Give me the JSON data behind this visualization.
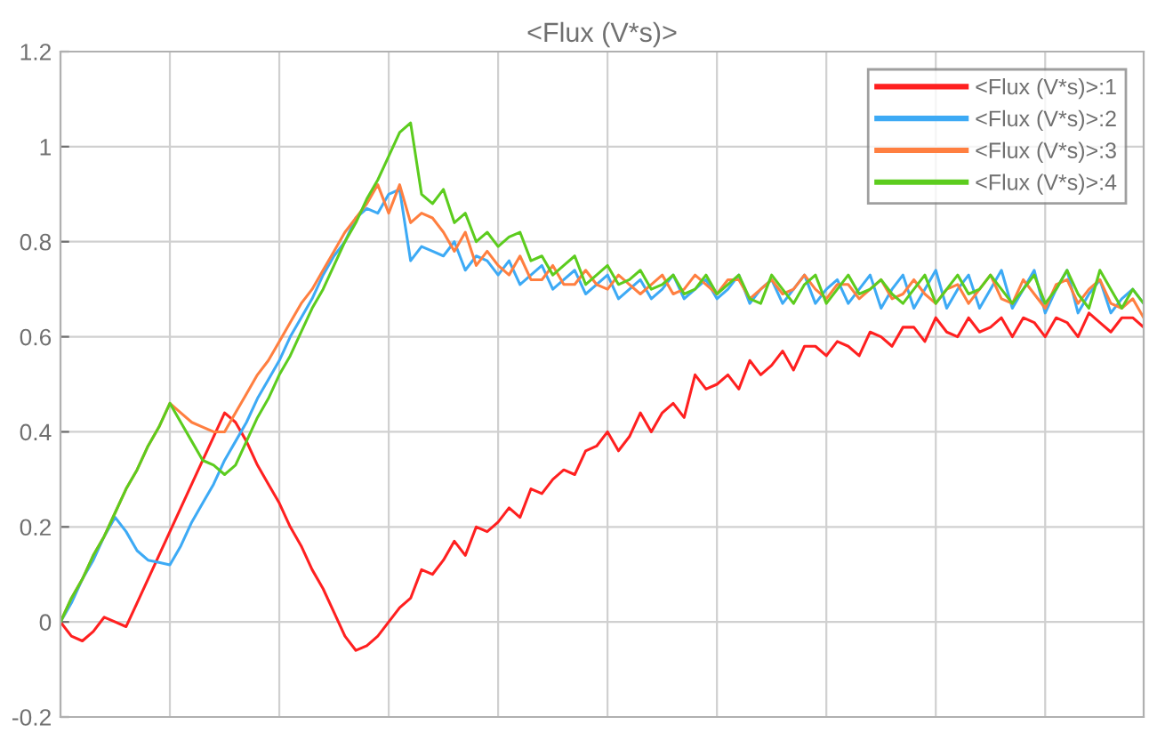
{
  "chart_data": {
    "type": "line",
    "title": "<Flux (V*s)>",
    "categories": [
      null,
      null,
      null,
      null,
      null,
      null,
      null,
      null,
      null,
      null,
      null,
      null,
      null,
      null,
      null,
      null,
      null,
      null,
      null,
      null,
      null,
      null,
      null,
      null,
      null,
      null,
      null,
      null,
      null,
      null,
      null,
      null,
      null,
      null,
      null,
      null,
      null,
      null,
      null,
      null,
      null,
      null,
      null,
      null,
      null,
      null,
      null,
      null,
      null,
      null,
      null,
      null,
      null,
      null,
      null,
      null,
      null,
      null,
      null,
      null,
      null,
      null,
      null,
      null,
      null,
      null,
      null,
      null,
      null,
      null,
      null,
      null,
      null,
      null,
      null,
      null,
      null,
      null,
      null,
      null,
      null,
      null,
      null,
      null,
      null,
      null,
      null,
      null,
      null,
      null,
      null,
      null,
      null,
      null,
      null,
      null,
      null,
      null,
      null,
      null
    ],
    "ylim": [
      -0.2,
      1.2
    ],
    "yticks": [
      -0.2,
      0,
      0.2,
      0.4,
      0.6,
      0.8,
      1,
      1.2
    ],
    "grid": true,
    "legend": "top right",
    "tick_labels": "y",
    "series": [
      {
        "name": "<Flux (V*s)>:1",
        "color": "#ff2020",
        "values": [
          0,
          -0.03,
          -0.04,
          -0.02,
          0.01,
          0.0,
          -0.01,
          0.04,
          0.09,
          0.14,
          0.19,
          0.24,
          0.29,
          0.34,
          0.39,
          0.44,
          0.42,
          0.38,
          0.33,
          0.29,
          0.25,
          0.2,
          0.16,
          0.11,
          0.07,
          0.02,
          -0.03,
          -0.06,
          -0.05,
          -0.03,
          0.0,
          0.03,
          0.05,
          0.11,
          0.1,
          0.13,
          0.17,
          0.14,
          0.2,
          0.19,
          0.21,
          0.24,
          0.22,
          0.28,
          0.27,
          0.3,
          0.32,
          0.31,
          0.36,
          0.37,
          0.4,
          0.36,
          0.39,
          0.44,
          0.4,
          0.44,
          0.46,
          0.43,
          0.52,
          0.49,
          0.5,
          0.52,
          0.49,
          0.55,
          0.52,
          0.54,
          0.57,
          0.53,
          0.58,
          0.58,
          0.56,
          0.59,
          0.58,
          0.56,
          0.61,
          0.6,
          0.58,
          0.62,
          0.62,
          0.59,
          0.64,
          0.61,
          0.6,
          0.64,
          0.61,
          0.62,
          0.64,
          0.6,
          0.64,
          0.63,
          0.6,
          0.64,
          0.63,
          0.6,
          0.65,
          0.63,
          0.61,
          0.64,
          0.64,
          0.62
        ]
      },
      {
        "name": "<Flux (V*s)>:2",
        "color": "#3daaf5",
        "values": [
          0,
          0.04,
          0.09,
          0.13,
          0.18,
          0.22,
          0.19,
          0.15,
          0.13,
          0.125,
          0.12,
          0.16,
          0.21,
          0.25,
          0.29,
          0.34,
          0.38,
          0.42,
          0.47,
          0.51,
          0.55,
          0.6,
          0.64,
          0.68,
          0.73,
          0.77,
          0.8,
          0.85,
          0.87,
          0.86,
          0.9,
          0.91,
          0.76,
          0.79,
          0.78,
          0.77,
          0.8,
          0.74,
          0.77,
          0.76,
          0.73,
          0.76,
          0.71,
          0.73,
          0.75,
          0.7,
          0.72,
          0.74,
          0.69,
          0.71,
          0.73,
          0.68,
          0.7,
          0.72,
          0.68,
          0.7,
          0.73,
          0.68,
          0.7,
          0.72,
          0.68,
          0.7,
          0.73,
          0.67,
          0.7,
          0.72,
          0.67,
          0.7,
          0.73,
          0.67,
          0.7,
          0.72,
          0.67,
          0.7,
          0.73,
          0.66,
          0.7,
          0.73,
          0.66,
          0.7,
          0.74,
          0.66,
          0.7,
          0.73,
          0.66,
          0.7,
          0.74,
          0.66,
          0.7,
          0.74,
          0.65,
          0.7,
          0.74,
          0.65,
          0.69,
          0.72,
          0.65,
          0.68,
          0.7,
          0.67
        ]
      },
      {
        "name": "<Flux (V*s)>:3",
        "color": "#ff7f40",
        "values": [
          0,
          0.05,
          0.09,
          0.14,
          0.18,
          0.23,
          0.28,
          0.32,
          0.37,
          0.41,
          0.46,
          0.44,
          0.42,
          0.41,
          0.4,
          0.4,
          0.44,
          0.48,
          0.52,
          0.55,
          0.59,
          0.63,
          0.67,
          0.7,
          0.74,
          0.78,
          0.82,
          0.85,
          0.88,
          0.92,
          0.86,
          0.92,
          0.84,
          0.86,
          0.85,
          0.82,
          0.78,
          0.82,
          0.75,
          0.78,
          0.75,
          0.73,
          0.77,
          0.72,
          0.72,
          0.75,
          0.71,
          0.71,
          0.74,
          0.71,
          0.7,
          0.73,
          0.71,
          0.69,
          0.71,
          0.73,
          0.69,
          0.7,
          0.73,
          0.71,
          0.69,
          0.72,
          0.72,
          0.68,
          0.7,
          0.72,
          0.69,
          0.7,
          0.73,
          0.7,
          0.68,
          0.71,
          0.71,
          0.68,
          0.7,
          0.72,
          0.68,
          0.69,
          0.72,
          0.69,
          0.67,
          0.7,
          0.71,
          0.67,
          0.7,
          0.73,
          0.68,
          0.67,
          0.72,
          0.69,
          0.66,
          0.71,
          0.72,
          0.67,
          0.7,
          0.72,
          0.67,
          0.66,
          0.68,
          0.64
        ]
      },
      {
        "name": "<Flux (V*s)>:4",
        "color": "#5ccc1e",
        "values": [
          0,
          0.05,
          0.09,
          0.14,
          0.18,
          0.23,
          0.28,
          0.32,
          0.37,
          0.41,
          0.46,
          0.42,
          0.38,
          0.34,
          0.33,
          0.31,
          0.33,
          0.38,
          0.43,
          0.47,
          0.52,
          0.56,
          0.61,
          0.66,
          0.7,
          0.75,
          0.8,
          0.84,
          0.89,
          0.93,
          0.98,
          1.03,
          1.05,
          0.9,
          0.88,
          0.91,
          0.84,
          0.86,
          0.8,
          0.82,
          0.79,
          0.81,
          0.82,
          0.76,
          0.77,
          0.73,
          0.75,
          0.77,
          0.71,
          0.73,
          0.75,
          0.71,
          0.72,
          0.74,
          0.7,
          0.71,
          0.73,
          0.69,
          0.7,
          0.73,
          0.69,
          0.71,
          0.73,
          0.68,
          0.67,
          0.73,
          0.7,
          0.67,
          0.71,
          0.73,
          0.67,
          0.7,
          0.73,
          0.69,
          0.7,
          0.72,
          0.69,
          0.67,
          0.7,
          0.73,
          0.67,
          0.7,
          0.73,
          0.69,
          0.7,
          0.73,
          0.7,
          0.67,
          0.7,
          0.73,
          0.67,
          0.7,
          0.74,
          0.69,
          0.66,
          0.74,
          0.7,
          0.66,
          0.7,
          0.67
        ]
      }
    ]
  }
}
